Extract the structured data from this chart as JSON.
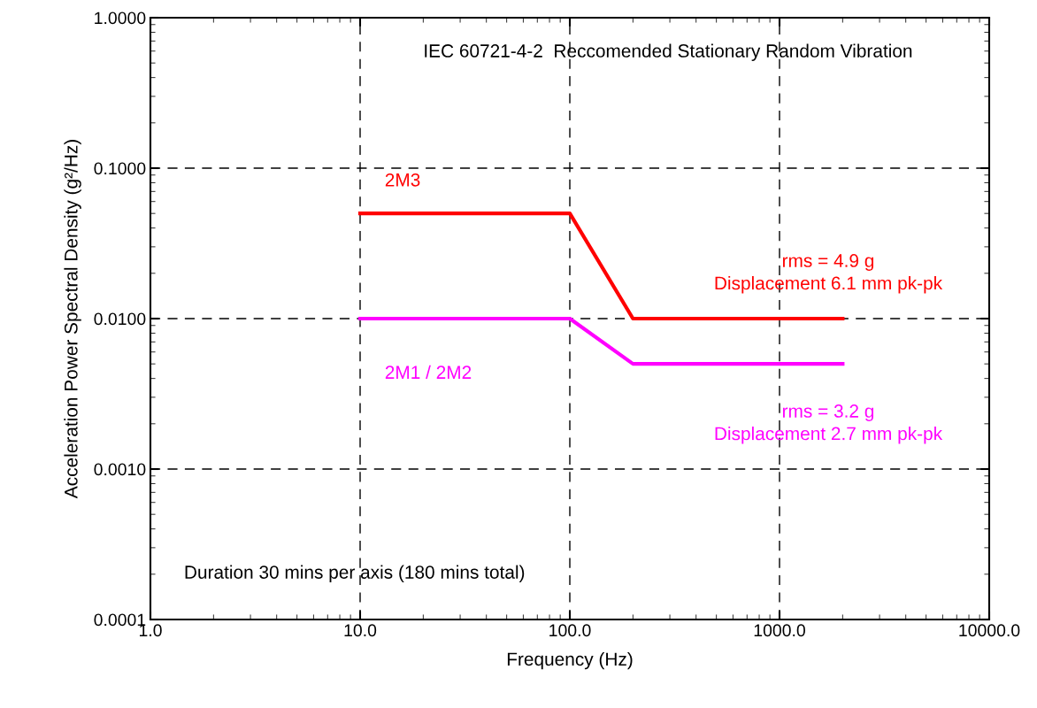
{
  "chart_data": {
    "type": "line",
    "title": "IEC 60721-4-2  Reccomended Stationary Random Vibration",
    "xlabel": "Frequency (Hz)",
    "ylabel": "Acceleration Power Spectral Density (g²/Hz)",
    "series": [
      {
        "name": "2M3",
        "color": "#ff0000",
        "x": [
          10,
          100,
          200,
          2000
        ],
        "values": [
          0.05,
          0.05,
          0.01,
          0.01
        ]
      },
      {
        "name": "2M1 / 2M2",
        "color": "#ff00ff",
        "x": [
          10,
          100,
          200,
          2000
        ],
        "values": [
          0.01,
          0.01,
          0.005,
          0.005
        ]
      }
    ],
    "annotations": [
      "rms = 4.9 g\nDisplacement 6.1 mm pk-pk",
      "rms = 3.2 g\nDisplacement 2.7 mm pk-pk",
      "Duration 30 mins per axis (180 mins total)"
    ],
    "log": "xy",
    "xlim": [
      1,
      10000
    ],
    "ylim": [
      0.0001,
      1
    ],
    "xticks": [
      {
        "value": 1,
        "label": "1.0"
      },
      {
        "value": 10,
        "label": "10.0"
      },
      {
        "value": 100,
        "label": "100.0"
      },
      {
        "value": 1000,
        "label": "1000.0"
      },
      {
        "value": 10000,
        "label": "10000.0"
      }
    ],
    "yticks": [
      {
        "value": 0.0001,
        "label": "0.0001"
      },
      {
        "value": 0.001,
        "label": "0.0010"
      },
      {
        "value": 0.01,
        "label": "0.0100"
      },
      {
        "value": 0.1,
        "label": "0.1000"
      },
      {
        "value": 1,
        "label": "1.0000"
      }
    ],
    "grid": true,
    "line_style": "solid",
    "marker": "none",
    "legend": false
  }
}
